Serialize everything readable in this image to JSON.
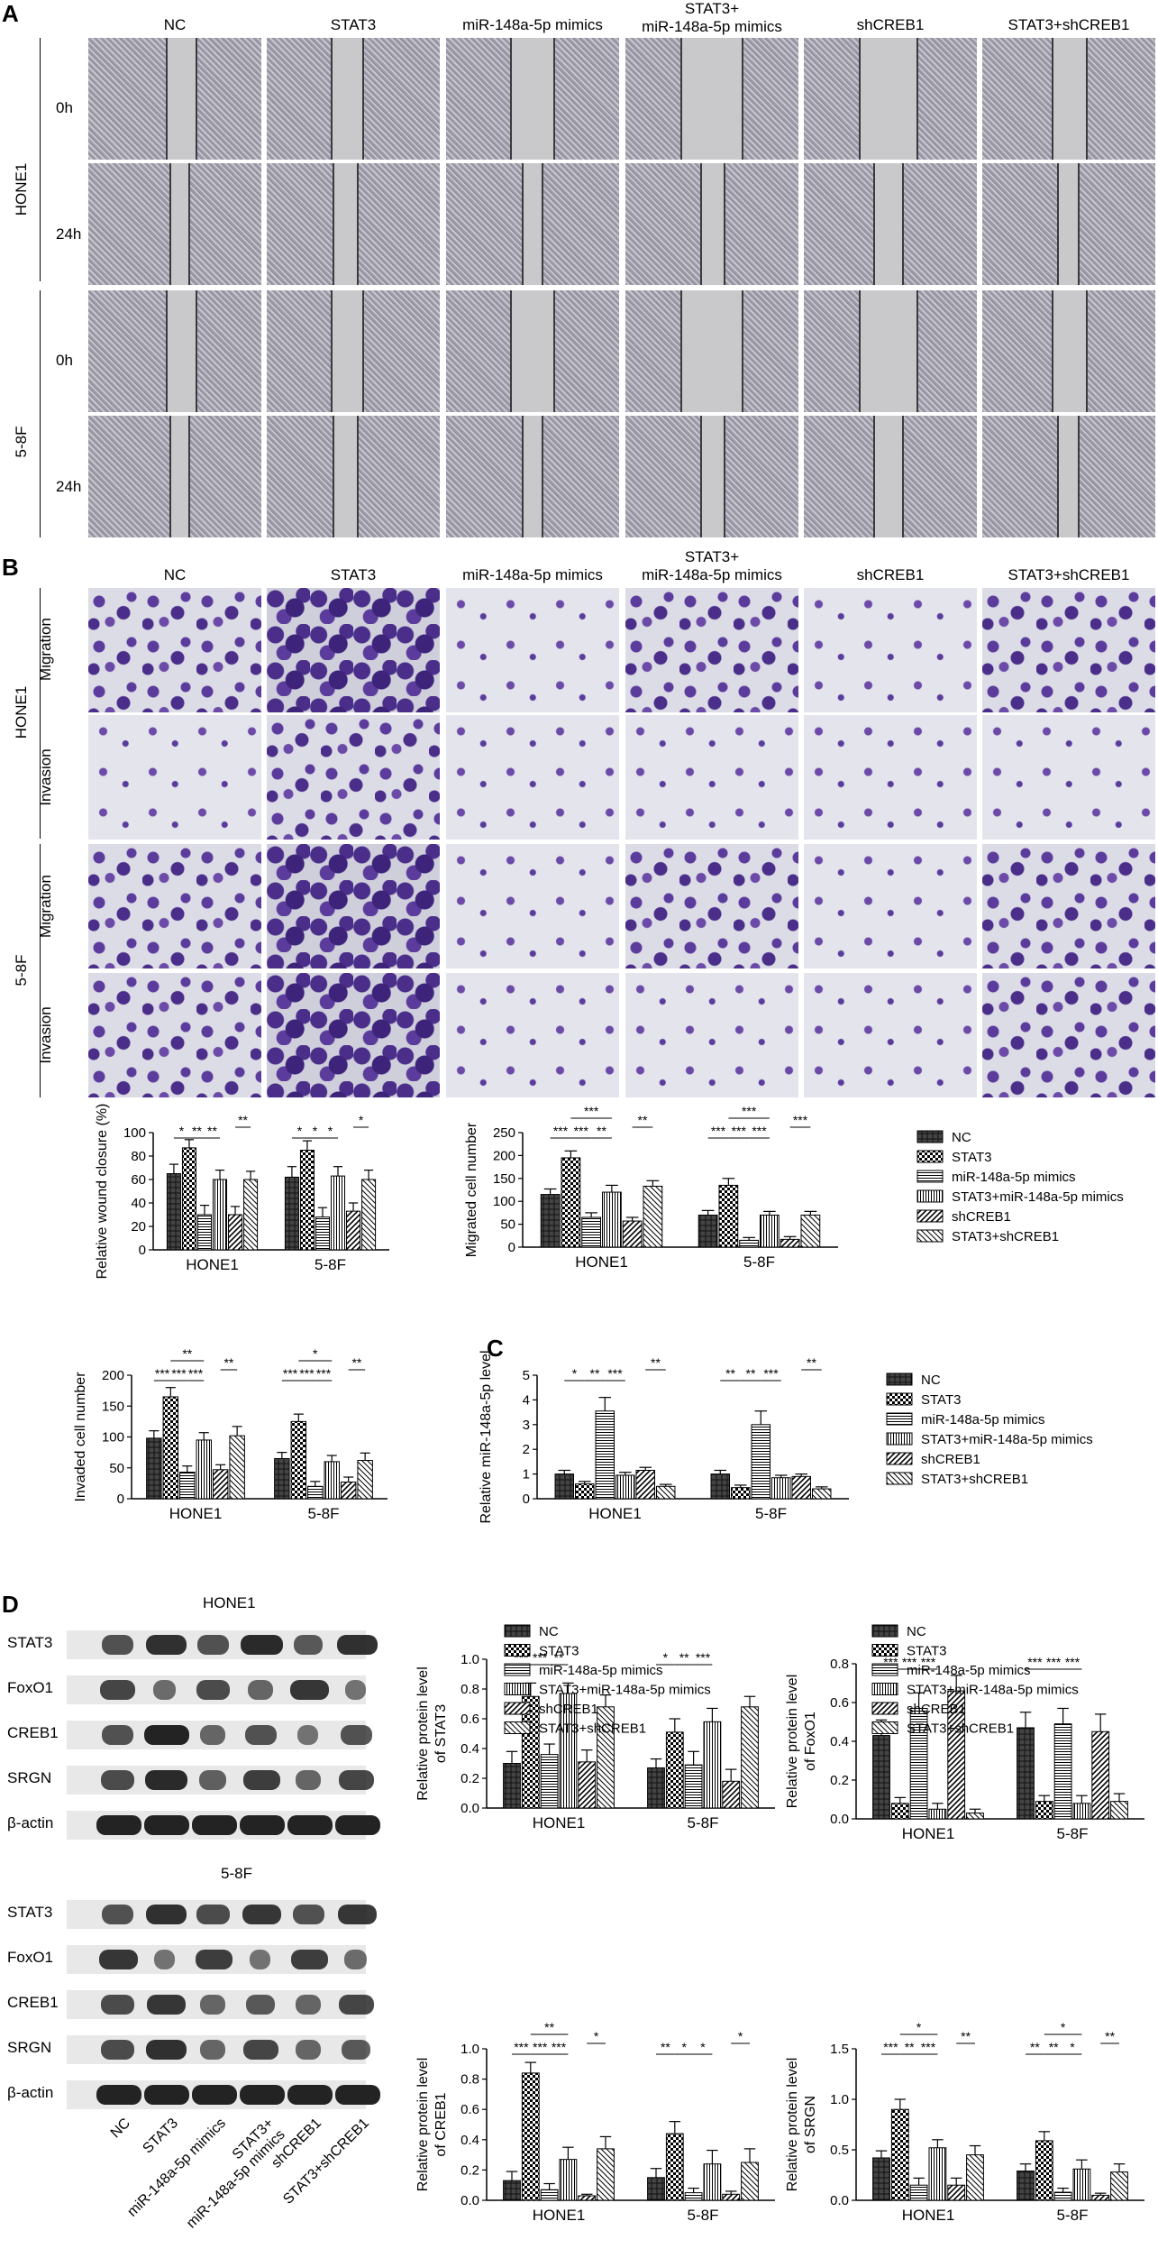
{
  "panels": {
    "A": "A",
    "B": "B",
    "C": "C",
    "D": "D"
  },
  "groups": [
    "NC",
    "STAT3",
    "miR-148a-5p mimics",
    "STAT3+\nmiR-148a-5p mimics",
    "shCREB1",
    "STAT3+shCREB1"
  ],
  "panelA": {
    "cell_lines": [
      "HONE1",
      "5-8F"
    ],
    "times": [
      "0h",
      "24h"
    ]
  },
  "panelB": {
    "cell_lines": [
      "HONE1",
      "5-8F"
    ],
    "assays": [
      "Migration",
      "Invasion"
    ]
  },
  "legend_labels": [
    "NC",
    "STAT3",
    "miR-148a-5p mimics",
    "STAT3+miR-148a-5p mimics",
    "shCREB1",
    "STAT3+shCREB1"
  ],
  "panelD_blots": {
    "titles": [
      "HONE1",
      "5-8F"
    ],
    "proteins": [
      "STAT3",
      "FoxO1",
      "CREB1",
      "SRGN",
      "β-actin"
    ],
    "lane_labels": [
      "NC",
      "STAT3",
      "miR-148a-5p mimics",
      "STAT3+\nmiR-148a-5p mimics",
      "shCREB1",
      "STAT3+shCREB1"
    ]
  },
  "chart_data": [
    {
      "id": "wound",
      "type": "bar",
      "ylabel": "Relative wound closure (%)",
      "ylim": [
        0,
        100
      ],
      "yticks": [
        0,
        20,
        40,
        60,
        80,
        100
      ],
      "categories": [
        "HONE1",
        "5-8F"
      ],
      "series": [
        {
          "name": "NC",
          "values": [
            65,
            62
          ],
          "err": [
            8,
            9
          ]
        },
        {
          "name": "STAT3",
          "values": [
            87,
            85
          ],
          "err": [
            7,
            8
          ]
        },
        {
          "name": "miR-148a-5p mimics",
          "values": [
            30,
            28
          ],
          "err": [
            8,
            8
          ]
        },
        {
          "name": "STAT3+miR-148a-5p mimics",
          "values": [
            60,
            63
          ],
          "err": [
            8,
            8
          ]
        },
        {
          "name": "shCREB1",
          "values": [
            30,
            33
          ],
          "err": [
            7,
            7
          ]
        },
        {
          "name": "STAT3+shCREB1",
          "values": [
            60,
            60
          ],
          "err": [
            7,
            8
          ]
        }
      ],
      "significance": [
        "*",
        "**",
        "**",
        "**",
        "*",
        "*",
        "*",
        "*"
      ]
    },
    {
      "id": "migrated",
      "type": "bar",
      "ylabel": "Migrated cell number",
      "ylim": [
        0,
        250
      ],
      "yticks": [
        0,
        50,
        100,
        150,
        200,
        250
      ],
      "categories": [
        "HONE1",
        "5-8F"
      ],
      "series": [
        {
          "name": "NC",
          "values": [
            115,
            70
          ],
          "err": [
            12,
            10
          ]
        },
        {
          "name": "STAT3",
          "values": [
            195,
            135
          ],
          "err": [
            15,
            15
          ]
        },
        {
          "name": "miR-148a-5p mimics",
          "values": [
            65,
            15
          ],
          "err": [
            10,
            6
          ]
        },
        {
          "name": "STAT3+miR-148a-5p mimics",
          "values": [
            120,
            70
          ],
          "err": [
            15,
            8
          ]
        },
        {
          "name": "shCREB1",
          "values": [
            57,
            17
          ],
          "err": [
            8,
            6
          ]
        },
        {
          "name": "STAT3+shCREB1",
          "values": [
            133,
            70
          ],
          "err": [
            12,
            8
          ]
        }
      ],
      "significance": [
        "***",
        "***",
        "**",
        "**",
        "***",
        "***",
        "***",
        "***",
        "***",
        "***"
      ]
    },
    {
      "id": "invaded",
      "type": "bar",
      "ylabel": "Invaded cell number",
      "ylim": [
        0,
        200
      ],
      "yticks": [
        0,
        50,
        100,
        150,
        200
      ],
      "categories": [
        "HONE1",
        "5-8F"
      ],
      "series": [
        {
          "name": "NC",
          "values": [
            98,
            65
          ],
          "err": [
            12,
            10
          ]
        },
        {
          "name": "STAT3",
          "values": [
            165,
            125
          ],
          "err": [
            15,
            12
          ]
        },
        {
          "name": "miR-148a-5p mimics",
          "values": [
            43,
            20
          ],
          "err": [
            10,
            8
          ]
        },
        {
          "name": "STAT3+miR-148a-5p mimics",
          "values": [
            95,
            60
          ],
          "err": [
            12,
            10
          ]
        },
        {
          "name": "shCREB1",
          "values": [
            47,
            27
          ],
          "err": [
            8,
            8
          ]
        },
        {
          "name": "STAT3+shCREB1",
          "values": [
            102,
            62
          ],
          "err": [
            15,
            12
          ]
        }
      ],
      "significance": [
        "***",
        "***",
        "***",
        "**",
        "**",
        "***",
        "***",
        "***",
        "**",
        "*"
      ]
    },
    {
      "id": "mirna",
      "type": "bar",
      "ylabel": "Relative miR-148a-5p level",
      "ylim": [
        0,
        5
      ],
      "yticks": [
        0,
        1,
        2,
        3,
        4,
        5
      ],
      "categories": [
        "HONE1",
        "5-8F"
      ],
      "series": [
        {
          "name": "NC",
          "values": [
            1.0,
            1.0
          ],
          "err": [
            0.15,
            0.15
          ]
        },
        {
          "name": "STAT3",
          "values": [
            0.6,
            0.45
          ],
          "err": [
            0.1,
            0.1
          ]
        },
        {
          "name": "miR-148a-5p mimics",
          "values": [
            3.55,
            3.0
          ],
          "err": [
            0.55,
            0.55
          ]
        },
        {
          "name": "STAT3+miR-148a-5p mimics",
          "values": [
            0.95,
            0.85
          ],
          "err": [
            0.12,
            0.1
          ]
        },
        {
          "name": "shCREB1",
          "values": [
            1.15,
            0.9
          ],
          "err": [
            0.12,
            0.1
          ]
        },
        {
          "name": "STAT3+shCREB1",
          "values": [
            0.5,
            0.4
          ],
          "err": [
            0.08,
            0.08
          ]
        }
      ],
      "significance": [
        "*",
        "**",
        "***",
        "**",
        "**",
        "**",
        "***",
        "**"
      ]
    },
    {
      "id": "stat3",
      "type": "bar",
      "ylabel": "Relative protein level of STAT3",
      "ylim": [
        0,
        1.0
      ],
      "yticks": [
        0.0,
        0.2,
        0.4,
        0.6,
        0.8,
        1.0
      ],
      "categories": [
        "HONE1",
        "5-8F"
      ],
      "series": [
        {
          "name": "NC",
          "values": [
            0.3,
            0.27
          ],
          "err": [
            0.08,
            0.06
          ]
        },
        {
          "name": "STAT3",
          "values": [
            0.75,
            0.51
          ],
          "err": [
            0.09,
            0.09
          ]
        },
        {
          "name": "miR-148a-5p mimics",
          "values": [
            0.36,
            0.29
          ],
          "err": [
            0.07,
            0.09
          ]
        },
        {
          "name": "STAT3+miR-148a-5p mimics",
          "values": [
            0.77,
            0.58
          ],
          "err": [
            0.07,
            0.09
          ]
        },
        {
          "name": "shCREB1",
          "values": [
            0.31,
            0.18
          ],
          "err": [
            0.08,
            0.08
          ]
        },
        {
          "name": "STAT3+shCREB1",
          "values": [
            0.68,
            0.68
          ],
          "err": [
            0.08,
            0.07
          ]
        }
      ],
      "significance": [
        "***",
        "***",
        "**",
        "*",
        "**",
        "***"
      ]
    },
    {
      "id": "foxo1",
      "type": "bar",
      "ylabel": "Relative protein level of FoxO1",
      "ylim": [
        0,
        0.8
      ],
      "yticks": [
        0.0,
        0.2,
        0.4,
        0.6,
        0.8
      ],
      "categories": [
        "HONE1",
        "5-8F"
      ],
      "series": [
        {
          "name": "NC",
          "values": [
            0.43,
            0.47
          ],
          "err": [
            0.08,
            0.08
          ]
        },
        {
          "name": "STAT3",
          "values": [
            0.08,
            0.09
          ],
          "err": [
            0.03,
            0.03
          ]
        },
        {
          "name": "miR-148a-5p mimics",
          "values": [
            0.57,
            0.49
          ],
          "err": [
            0.08,
            0.08
          ]
        },
        {
          "name": "STAT3+miR-148a-5p mimics",
          "values": [
            0.05,
            0.08
          ],
          "err": [
            0.03,
            0.04
          ]
        },
        {
          "name": "shCREB1",
          "values": [
            0.66,
            0.45
          ],
          "err": [
            0.08,
            0.09
          ]
        },
        {
          "name": "STAT3+shCREB1",
          "values": [
            0.03,
            0.09
          ],
          "err": [
            0.02,
            0.04
          ]
        }
      ],
      "significance": [
        "***",
        "***",
        "***",
        "***",
        "***",
        "***"
      ]
    },
    {
      "id": "creb1",
      "type": "bar",
      "ylabel": "Relative protein level of CREB1",
      "ylim": [
        0,
        1.0
      ],
      "yticks": [
        0.0,
        0.2,
        0.4,
        0.6,
        0.8,
        1.0
      ],
      "categories": [
        "HONE1",
        "5-8F"
      ],
      "series": [
        {
          "name": "NC",
          "values": [
            0.13,
            0.15
          ],
          "err": [
            0.06,
            0.06
          ]
        },
        {
          "name": "STAT3",
          "values": [
            0.84,
            0.44
          ],
          "err": [
            0.07,
            0.08
          ]
        },
        {
          "name": "miR-148a-5p mimics",
          "values": [
            0.07,
            0.05
          ],
          "err": [
            0.04,
            0.03
          ]
        },
        {
          "name": "STAT3+miR-148a-5p mimics",
          "values": [
            0.27,
            0.24
          ],
          "err": [
            0.08,
            0.09
          ]
        },
        {
          "name": "shCREB1",
          "values": [
            0.03,
            0.04
          ],
          "err": [
            0.01,
            0.02
          ]
        },
        {
          "name": "STAT3+shCREB1",
          "values": [
            0.34,
            0.25
          ],
          "err": [
            0.08,
            0.09
          ]
        }
      ],
      "significance": [
        "***",
        "***",
        "***",
        "*",
        "**",
        "**",
        "*",
        "*",
        "*"
      ]
    },
    {
      "id": "srgn",
      "type": "bar",
      "ylabel": "Relative protein level of SRGN",
      "ylim": [
        0,
        1.5
      ],
      "yticks": [
        0.0,
        0.5,
        1.0,
        1.5
      ],
      "categories": [
        "HONE1",
        "5-8F"
      ],
      "series": [
        {
          "name": "NC",
          "values": [
            0.42,
            0.29
          ],
          "err": [
            0.07,
            0.07
          ]
        },
        {
          "name": "STAT3",
          "values": [
            0.9,
            0.59
          ],
          "err": [
            0.1,
            0.09
          ]
        },
        {
          "name": "miR-148a-5p mimics",
          "values": [
            0.15,
            0.08
          ],
          "err": [
            0.07,
            0.04
          ]
        },
        {
          "name": "STAT3+miR-148a-5p mimics",
          "values": [
            0.52,
            0.31
          ],
          "err": [
            0.08,
            0.09
          ]
        },
        {
          "name": "shCREB1",
          "values": [
            0.15,
            0.05
          ],
          "err": [
            0.07,
            0.02
          ]
        },
        {
          "name": "STAT3+shCREB1",
          "values": [
            0.45,
            0.28
          ],
          "err": [
            0.09,
            0.08
          ]
        }
      ],
      "significance": [
        "***",
        "**",
        "***",
        "**",
        "*",
        "**",
        "**",
        "*",
        "**",
        "*"
      ]
    }
  ]
}
